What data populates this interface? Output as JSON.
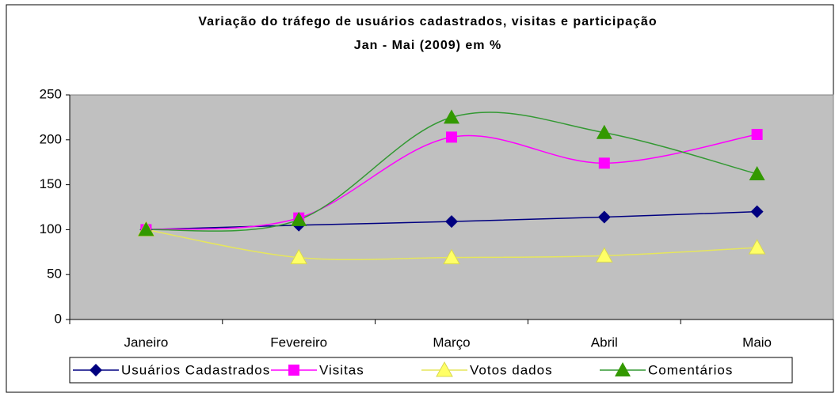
{
  "chart_data": {
    "type": "line",
    "smooth": true,
    "title": "Variação do tráfego de usuários cadastrados, visitas e participação",
    "subtitle": "Jan - Mai (2009) em %",
    "categories": [
      "Janeiro",
      "Fevereiro",
      "Março",
      "Abril",
      "Maio"
    ],
    "series": [
      {
        "name": "Usuários Cadastrados",
        "color": "#000080",
        "marker": "diamond",
        "values": [
          100,
          105,
          109,
          114,
          120
        ]
      },
      {
        "name": "Visitas",
        "color": "#ff00ff",
        "marker": "square",
        "values": [
          100,
          113,
          203,
          174,
          206
        ]
      },
      {
        "name": "Votos dados",
        "color": "#ffff66",
        "marker": "triangle",
        "values": [
          100,
          69,
          69,
          71,
          80
        ]
      },
      {
        "name": "Comentários",
        "color": "#339900",
        "marker": "triangle",
        "values": [
          100,
          111,
          225,
          208,
          162
        ]
      }
    ],
    "ylim": [
      0,
      250
    ],
    "yticks": [
      0,
      50,
      100,
      150,
      200,
      250
    ],
    "grid": false,
    "plot_background": "#c0c0c0",
    "legend": "bottom"
  }
}
